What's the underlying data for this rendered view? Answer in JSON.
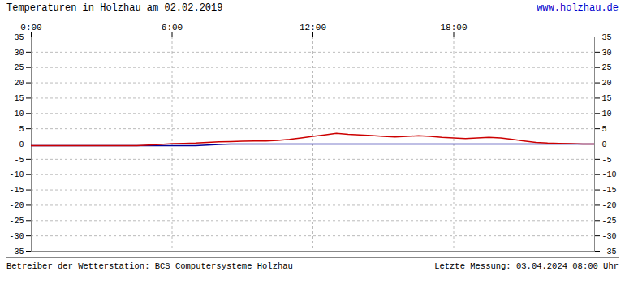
{
  "chart_data": {
    "type": "line",
    "title": "Temperaturen in Holzhau am 02.02.2019",
    "annotations": [
      {
        "text": "www.holzhau.de",
        "color": "#0000cc"
      },
      {
        "text": "Betreiber der Wetterstation: BCS Computersysteme Holzhau",
        "color": "#000000"
      },
      {
        "text": "Letzte Messung: 03.04.2024 08:00 Uhr",
        "color": "#000000"
      }
    ],
    "x": [
      0,
      30,
      60,
      90,
      120,
      150,
      180,
      210,
      240,
      270,
      300,
      330,
      360,
      390,
      420,
      450,
      480,
      510,
      540,
      570,
      600,
      630,
      660,
      690,
      720,
      750,
      780,
      810,
      840,
      870,
      900,
      930,
      960,
      990,
      1020,
      1050,
      1080,
      1110,
      1140,
      1170,
      1200,
      1230,
      1260,
      1290,
      1320,
      1350,
      1380,
      1410,
      1440
    ],
    "series": [
      {
        "color": "#000099",
        "values": [
          -0.5,
          -0.5,
          -0.5,
          -0.5,
          -0.5,
          -0.5,
          -0.5,
          -0.5,
          -0.5,
          -0.5,
          -0.5,
          -0.5,
          -0.5,
          -0.5,
          -0.5,
          -0.3,
          -0.1,
          0.0,
          0.0,
          0.0,
          0.0,
          0.0,
          0.0,
          0.0,
          0.0,
          0.0,
          0.0,
          0.0,
          0.0,
          0.0,
          0.0,
          0.0,
          0.0,
          0.0,
          0.0,
          0.0,
          0.0,
          0.0,
          0.0,
          0.0,
          0.0,
          0.0,
          0.0,
          0.0,
          0.0,
          0.0,
          0.0,
          0.0,
          0.0
        ]
      },
      {
        "color": "#cc0000",
        "values": [
          -0.5,
          -0.5,
          -0.5,
          -0.5,
          -0.5,
          -0.5,
          -0.5,
          -0.5,
          -0.5,
          -0.5,
          -0.3,
          -0.1,
          0.1,
          0.2,
          0.3,
          0.5,
          0.7,
          0.8,
          0.9,
          1.0,
          1.0,
          1.2,
          1.5,
          2.0,
          2.5,
          3.0,
          3.5,
          3.2,
          3.0,
          2.8,
          2.5,
          2.3,
          2.5,
          2.7,
          2.5,
          2.2,
          2.0,
          1.8,
          2.0,
          2.2,
          2.0,
          1.5,
          1.0,
          0.5,
          0.3,
          0.2,
          0.1,
          0.0,
          0.0
        ]
      }
    ],
    "xlim": [
      0,
      1440
    ],
    "xticks": [
      {
        "value": 0,
        "label": "0:00"
      },
      {
        "value": 360,
        "label": "6:00"
      },
      {
        "value": 720,
        "label": "12:00"
      },
      {
        "value": 1080,
        "label": "18:00"
      }
    ],
    "ylim": [
      -35,
      35
    ],
    "yticks": [
      -35,
      -30,
      -25,
      -20,
      -15,
      -10,
      -5,
      0,
      5,
      10,
      15,
      20,
      25,
      30,
      35
    ],
    "grid": true
  }
}
